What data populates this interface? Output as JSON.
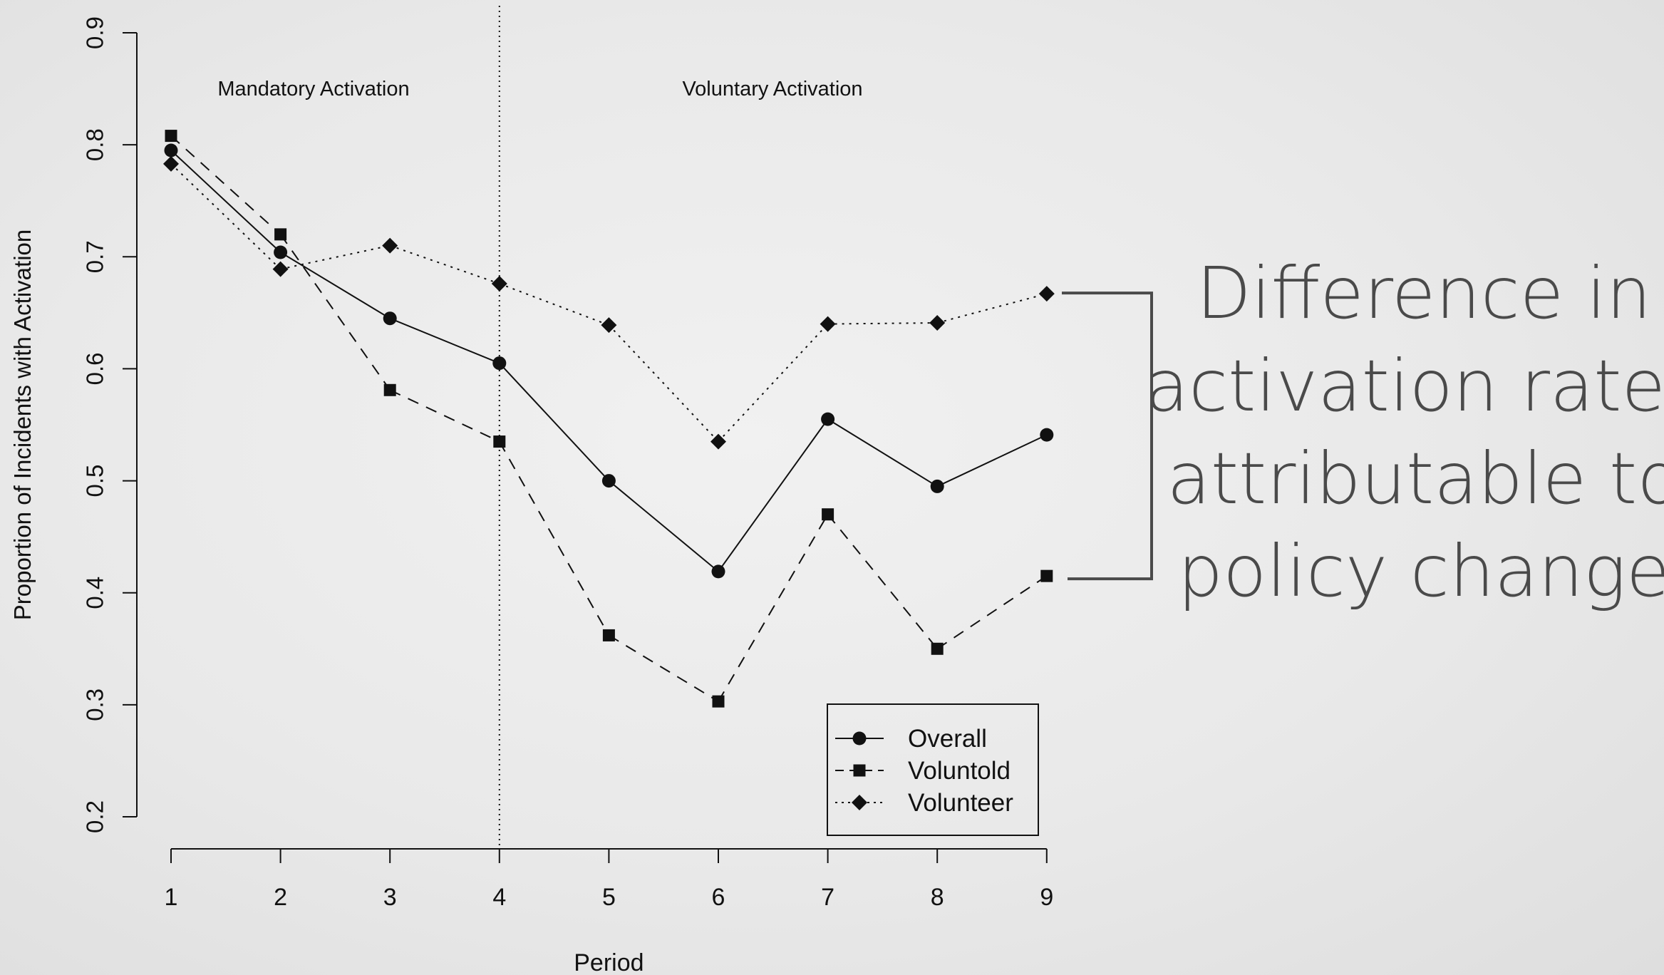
{
  "chart_data": {
    "type": "line",
    "x": [
      1,
      2,
      3,
      4,
      5,
      6,
      7,
      8,
      9
    ],
    "series": [
      {
        "name": "Overall",
        "marker": "circle",
        "line": "solid",
        "values": [
          0.795,
          0.704,
          0.645,
          0.605,
          0.5,
          0.419,
          0.555,
          0.495,
          0.541
        ]
      },
      {
        "name": "Voluntold",
        "marker": "square",
        "line": "dashed",
        "values": [
          0.808,
          0.72,
          0.581,
          0.535,
          0.362,
          0.303,
          0.47,
          0.35,
          0.415
        ]
      },
      {
        "name": "Volunteer",
        "marker": "diamond",
        "line": "dotted",
        "values": [
          0.783,
          0.689,
          0.71,
          0.676,
          0.639,
          0.535,
          0.64,
          0.641,
          0.667
        ]
      }
    ],
    "xlabel": "Period",
    "ylabel": "Proportion of Incidents with Activation",
    "xlim": [
      1,
      9
    ],
    "ylim": [
      0.2,
      0.9
    ],
    "x_ticks": [
      "1",
      "2",
      "3",
      "4",
      "5",
      "6",
      "7",
      "8",
      "9"
    ],
    "y_ticks": [
      "0.2",
      "0.3",
      "0.4",
      "0.5",
      "0.6",
      "0.7",
      "0.8",
      "0.9"
    ],
    "vline_x": 4,
    "regions": [
      {
        "label": "Mandatory Activation",
        "x_from": 1,
        "x_to": 4
      },
      {
        "label": "Voluntary Activation",
        "x_from": 4,
        "x_to": 9
      }
    ],
    "legend_position": "bottom-right",
    "grid": false,
    "callout": {
      "lines": [
        "Difference in",
        "activation rates",
        "attributable to",
        "policy change"
      ],
      "color": "#4a4a4a"
    }
  }
}
